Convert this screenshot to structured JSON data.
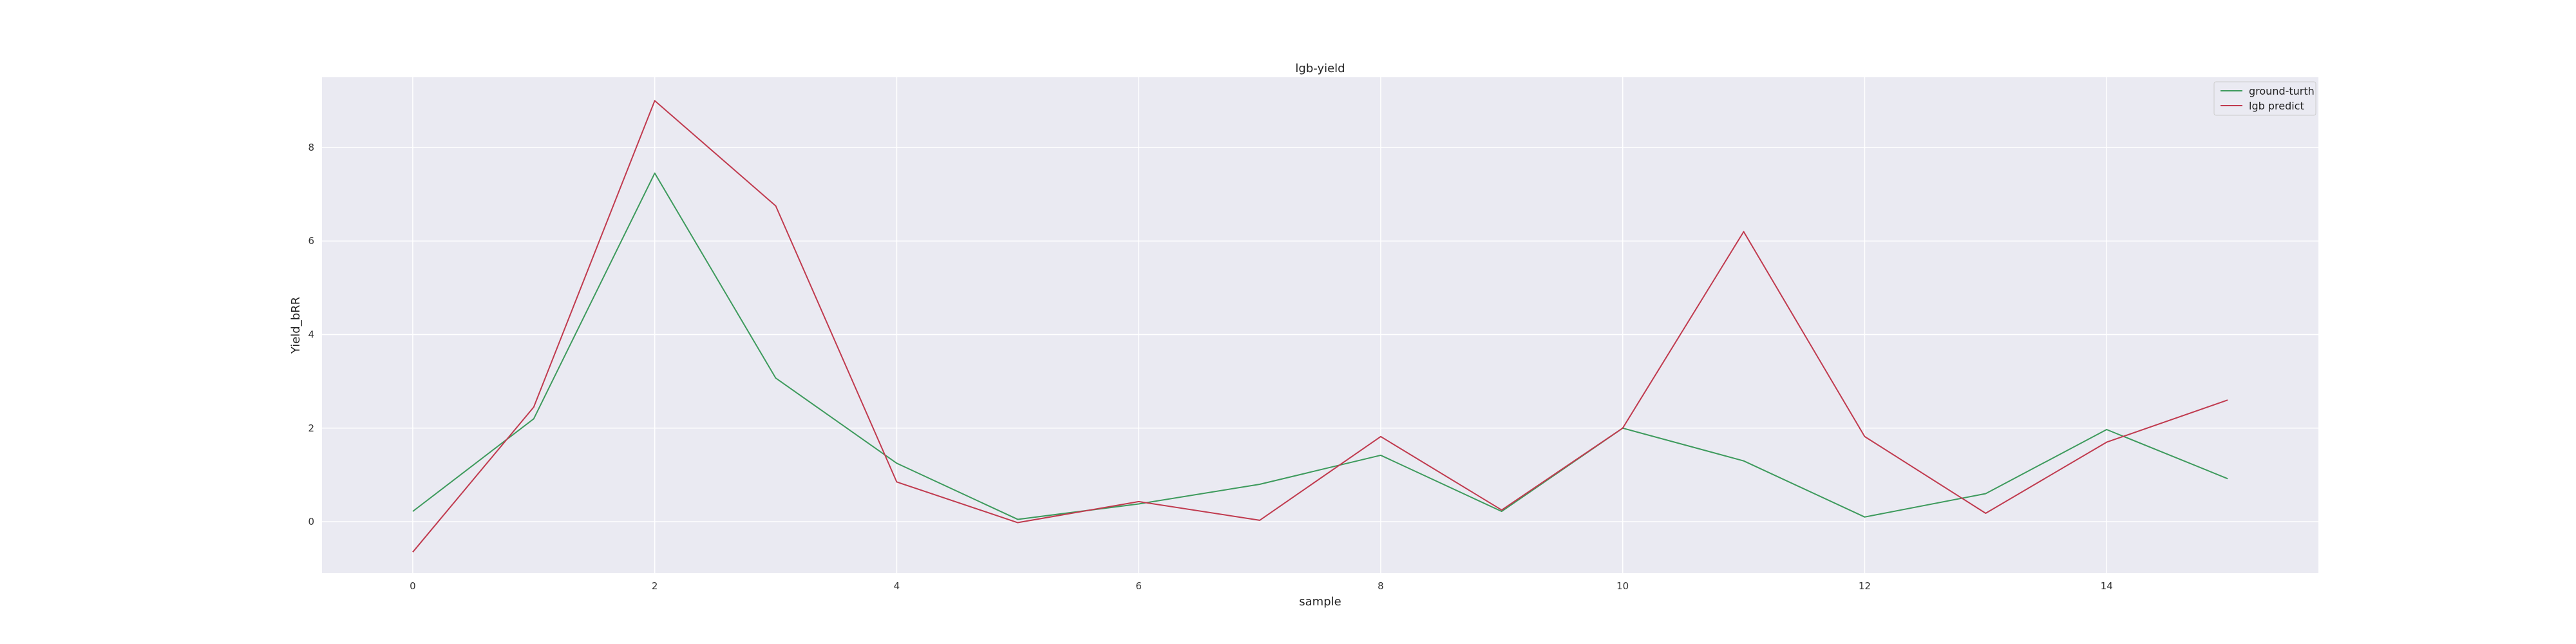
{
  "chart_data": {
    "type": "line",
    "title": "lgb-yield",
    "xlabel": "sample",
    "ylabel": "Yield_bRR",
    "x": [
      0,
      1,
      2,
      3,
      4,
      5,
      6,
      7,
      8,
      9,
      10,
      11,
      12,
      13,
      14,
      15
    ],
    "xlim": [
      -0.75,
      15.75
    ],
    "ylim": [
      -1.1,
      9.5
    ],
    "xticks": [
      0,
      2,
      4,
      6,
      8,
      10,
      12,
      14
    ],
    "yticks": [
      0,
      2,
      4,
      6,
      8
    ],
    "grid": true,
    "legend_position": "top-right",
    "background": "#eaeaf2",
    "series": [
      {
        "name": "ground-turth",
        "color": "#3d9a5c",
        "values": [
          0.22,
          2.2,
          7.45,
          3.07,
          1.25,
          0.05,
          0.38,
          0.8,
          1.42,
          0.22,
          2.0,
          1.3,
          0.1,
          0.6,
          1.97,
          0.92
        ]
      },
      {
        "name": "lgb predict",
        "color": "#c03a4e",
        "values": [
          -0.65,
          2.45,
          9.0,
          6.75,
          0.85,
          -0.02,
          0.43,
          0.03,
          1.82,
          0.25,
          2.0,
          6.2,
          1.82,
          0.18,
          1.7,
          2.6
        ]
      }
    ]
  }
}
